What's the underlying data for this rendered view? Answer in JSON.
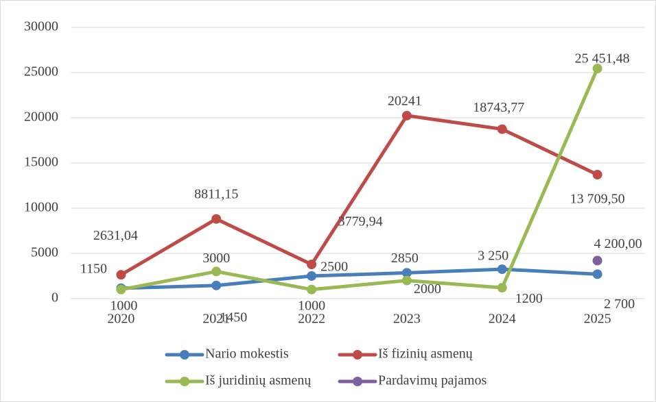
{
  "chart_data": {
    "type": "line",
    "categories": [
      "2020",
      "2021",
      "2022",
      "2023",
      "2024",
      "2025"
    ],
    "series": [
      {
        "name": "Nario mokestis",
        "color": "#4a7ebb",
        "values": [
          1150,
          1450,
          2500,
          2850,
          3250,
          2700
        ],
        "value_labels": [
          "1150",
          "1450",
          "2500",
          "2850",
          "3 250",
          "2 700"
        ]
      },
      {
        "name": "Iš fizinių asmenų",
        "color": "#be4b48",
        "values": [
          2631.04,
          8811.15,
          3779.94,
          20241,
          18743.77,
          13709.5
        ],
        "value_labels": [
          "2631,04",
          "8811,15",
          "3779,94",
          "20241",
          "18743,77",
          "13 709,50"
        ]
      },
      {
        "name": "Iš juridinių asmenų",
        "color": "#98b954",
        "values": [
          1000,
          3000,
          1000,
          2000,
          1200,
          25451.48
        ],
        "value_labels": [
          "1000",
          "3000",
          "1000",
          "2000",
          "1200",
          "25 451,48"
        ]
      },
      {
        "name": "Pardavimų pajamos",
        "color": "#7d60a0",
        "values": [
          null,
          null,
          null,
          null,
          null,
          4200
        ],
        "value_labels": [
          null,
          null,
          null,
          null,
          null,
          "4 200,00"
        ]
      }
    ],
    "ylim": [
      0,
      30000
    ],
    "yticks": [
      0,
      5000,
      10000,
      15000,
      20000,
      25000,
      30000
    ],
    "grid": true
  }
}
